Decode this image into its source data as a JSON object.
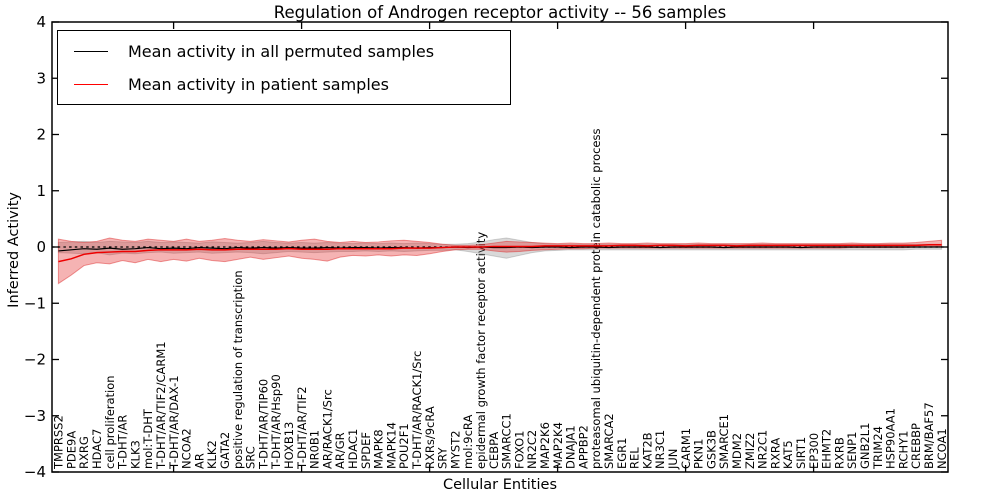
{
  "legend": {
    "items": [
      {
        "label": "Mean activity in all permuted samples",
        "color": "#000000"
      },
      {
        "label": "Mean activity in patient samples",
        "color": "#ff0000"
      }
    ]
  },
  "chart_data": {
    "type": "line",
    "title": "Regulation of Androgen receptor activity -- 56 samples",
    "xlabel": "Cellular Entities",
    "ylabel": "Inferred Activity",
    "ylim": [
      -4,
      4
    ],
    "grid": false,
    "legend_position": "upper left",
    "yticks": [
      4,
      3,
      2,
      1,
      0,
      -1,
      -2,
      -3,
      -4
    ],
    "ytick_labels": [
      "4",
      "3",
      "2",
      "1",
      "0",
      "−1",
      "−2",
      "−3",
      "−4"
    ],
    "xtick_entities": [
      10,
      20,
      30,
      40,
      50,
      60
    ],
    "zero_line": true,
    "categories": [
      "TMPRSS2",
      "PDE9A",
      "RXRG",
      "HDAC7",
      "cell proliferation",
      "T-DHT/AR",
      "KLK3",
      "mol:T-DHT",
      "T-DHT/AR/TIF2/CARM1",
      "T-DHT/AR/DAX-1",
      "NCOA2",
      "AR",
      "KLK2",
      "GATA2",
      "positive regulation of transcription",
      "SRC",
      "T-DHT/AR/TIP60",
      "T-DHT/AR/Hsp90",
      "HOXB13",
      "T-DHT/AR/TIF2",
      "NR0B1",
      "AR/RACK1/Src",
      "AR/GR",
      "HDAC1",
      "SPDEF",
      "MAPK8",
      "MAPK14",
      "POU2F1",
      "T-DHT/AR/RACK1/Src",
      "RXRs/9cRA",
      "SRY",
      "MYST2",
      "mol:9cRA",
      "epidermal growth factor receptor activity",
      "CEBPA",
      "SMARCC1",
      "FOXO1",
      "NR2C2",
      "MAP2K6",
      "MAP2K4",
      "DNAJA1",
      "APPBP2",
      "proteasomal ubiquitin-dependent protein catabolic process",
      "SMARCA2",
      "EGR1",
      "REL",
      "KAT2B",
      "NR3C1",
      "JUN",
      "CARM1",
      "PKN1",
      "GSK3B",
      "SMARCE1",
      "MDM2",
      "ZMIZ2",
      "NR2C1",
      "RXRA",
      "KAT5",
      "SIRT1",
      "EP300",
      "EHMT2",
      "RXRB",
      "SENP1",
      "GNB2L1",
      "TRIM24",
      "HSP90AA1",
      "RCHY1",
      "CREBBP",
      "BRM/BAF57",
      "NCOA1"
    ],
    "series": [
      {
        "name": "Mean activity in all permuted samples",
        "color": "#000000",
        "values": [
          -0.07,
          -0.05,
          -0.03,
          -0.04,
          -0.02,
          -0.04,
          -0.03,
          -0.01,
          -0.03,
          -0.02,
          -0.03,
          -0.01,
          -0.02,
          -0.03,
          -0.01,
          -0.02,
          -0.01,
          -0.02,
          -0.01,
          -0.02,
          -0.02,
          -0.01,
          -0.02,
          -0.01,
          -0.01,
          -0.02,
          -0.01,
          -0.01,
          -0.02,
          -0.01,
          -0.01,
          0.0,
          -0.01,
          0.0,
          -0.01,
          -0.01,
          0.0,
          -0.01,
          0.0,
          0.0,
          -0.01,
          0.0,
          0.0,
          -0.01,
          0.0,
          0.0,
          0.0,
          -0.01,
          0.0,
          0.0,
          0.0,
          0.0,
          -0.01,
          0.0,
          0.0,
          0.0,
          0.0,
          0.0,
          -0.01,
          0.0,
          0.0,
          0.0,
          0.0,
          0.0,
          0.0,
          0.0,
          0.0,
          0.0,
          0.0,
          0.0
        ]
      },
      {
        "name": "Mean activity in patient samples",
        "color": "#ee0000",
        "values": [
          -0.26,
          -0.21,
          -0.13,
          -0.1,
          -0.09,
          -0.08,
          -0.08,
          -0.06,
          -0.05,
          -0.05,
          -0.05,
          -0.04,
          -0.05,
          -0.05,
          -0.04,
          -0.04,
          -0.04,
          -0.04,
          -0.03,
          -0.04,
          -0.04,
          -0.04,
          -0.03,
          -0.03,
          -0.03,
          -0.03,
          -0.03,
          -0.02,
          -0.02,
          -0.02,
          -0.01,
          0.0,
          0.0,
          0.0,
          0.01,
          0.01,
          0.01,
          0.01,
          0.02,
          0.02,
          0.02,
          0.02,
          0.02,
          0.02,
          0.03,
          0.03,
          0.02,
          0.03,
          0.03,
          0.02,
          0.03,
          0.03,
          0.03,
          0.02,
          0.03,
          0.03,
          0.03,
          0.03,
          0.03,
          0.03,
          0.03,
          0.03,
          0.03,
          0.03,
          0.03,
          0.03,
          0.03,
          0.03,
          0.04,
          0.04
        ]
      }
    ],
    "bands": [
      {
        "name": "band-permuted-std",
        "fill": "rgba(128,128,128,0.30)",
        "edge": "rgba(128,128,128,0.35)",
        "upper": [
          0.08,
          0.09,
          0.1,
          0.08,
          0.1,
          0.09,
          0.08,
          0.1,
          0.08,
          0.09,
          0.08,
          0.07,
          0.09,
          0.08,
          0.07,
          0.08,
          0.1,
          0.08,
          0.07,
          0.08,
          0.07,
          0.08,
          0.07,
          0.06,
          0.07,
          0.06,
          0.07,
          0.06,
          0.07,
          0.06,
          0.05,
          0.05,
          0.06,
          0.09,
          0.13,
          0.16,
          0.12,
          0.08,
          0.06,
          0.05,
          0.05,
          0.05,
          0.05,
          0.05,
          0.05,
          0.05,
          0.05,
          0.05,
          0.05,
          0.05,
          0.05,
          0.05,
          0.05,
          0.05,
          0.05,
          0.05,
          0.05,
          0.05,
          0.05,
          0.05,
          0.05,
          0.05,
          0.05,
          0.05,
          0.05,
          0.05,
          0.05,
          0.05,
          0.05,
          0.05
        ],
        "lower": [
          -0.1,
          -0.11,
          -0.12,
          -0.1,
          -0.14,
          -0.11,
          -0.12,
          -0.1,
          -0.09,
          -0.11,
          -0.1,
          -0.09,
          -0.11,
          -0.1,
          -0.09,
          -0.1,
          -0.12,
          -0.1,
          -0.08,
          -0.09,
          -0.1,
          -0.09,
          -0.08,
          -0.08,
          -0.07,
          -0.08,
          -0.07,
          -0.08,
          -0.07,
          -0.06,
          -0.06,
          -0.05,
          -0.08,
          -0.12,
          -0.16,
          -0.2,
          -0.15,
          -0.1,
          -0.07,
          -0.06,
          -0.05,
          -0.05,
          -0.05,
          -0.05,
          -0.05,
          -0.05,
          -0.05,
          -0.05,
          -0.05,
          -0.05,
          -0.05,
          -0.05,
          -0.05,
          -0.05,
          -0.05,
          -0.05,
          -0.05,
          -0.05,
          -0.05,
          -0.05,
          -0.05,
          -0.05,
          -0.05,
          -0.05,
          -0.05,
          -0.05,
          -0.05,
          -0.04,
          -0.04,
          -0.04
        ]
      },
      {
        "name": "band-patient-std",
        "fill": "rgba(227,36,36,0.35)",
        "edge": "rgba(220,30,30,0.45)",
        "upper": [
          0.14,
          0.1,
          0.08,
          0.1,
          0.16,
          0.12,
          0.1,
          0.14,
          0.12,
          0.1,
          0.14,
          0.1,
          0.12,
          0.15,
          0.12,
          0.1,
          0.13,
          0.11,
          0.09,
          0.12,
          0.14,
          0.1,
          0.08,
          0.1,
          0.08,
          0.09,
          0.11,
          0.12,
          0.1,
          0.08,
          0.05,
          0.03,
          0.03,
          0.04,
          0.07,
          0.1,
          0.09,
          0.08,
          0.07,
          0.06,
          0.07,
          0.06,
          0.06,
          0.07,
          0.06,
          0.06,
          0.07,
          0.06,
          0.06,
          0.06,
          0.07,
          0.06,
          0.06,
          0.06,
          0.06,
          0.07,
          0.06,
          0.06,
          0.06,
          0.06,
          0.06,
          0.06,
          0.07,
          0.06,
          0.06,
          0.07,
          0.07,
          0.08,
          0.1,
          0.12
        ],
        "lower": [
          -0.65,
          -0.5,
          -0.33,
          -0.28,
          -0.3,
          -0.24,
          -0.28,
          -0.22,
          -0.26,
          -0.22,
          -0.25,
          -0.2,
          -0.24,
          -0.26,
          -0.22,
          -0.18,
          -0.22,
          -0.19,
          -0.16,
          -0.2,
          -0.22,
          -0.25,
          -0.18,
          -0.15,
          -0.16,
          -0.14,
          -0.16,
          -0.14,
          -0.15,
          -0.12,
          -0.08,
          -0.05,
          -0.04,
          -0.04,
          -0.07,
          -0.09,
          -0.08,
          -0.06,
          -0.05,
          -0.04,
          -0.03,
          -0.03,
          -0.02,
          -0.02,
          -0.02,
          -0.02,
          -0.02,
          -0.02,
          -0.02,
          -0.02,
          -0.02,
          -0.02,
          -0.02,
          -0.02,
          -0.02,
          -0.02,
          -0.02,
          -0.02,
          -0.02,
          -0.02,
          -0.02,
          -0.02,
          -0.01,
          -0.01,
          -0.01,
          -0.01,
          -0.01,
          0.0,
          0.0,
          0.01
        ]
      }
    ]
  }
}
